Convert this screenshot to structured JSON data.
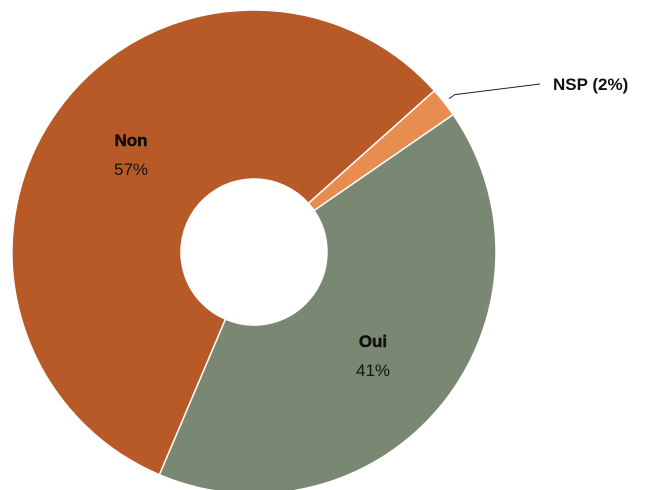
{
  "chart_data": {
    "type": "pie",
    "donut": true,
    "title": "",
    "start_angle_deg": 0,
    "slices": [
      {
        "name": "Non",
        "value": 57,
        "label_pct": "57%",
        "color": "#b85a28",
        "label_position": "inside"
      },
      {
        "name": "NSP",
        "value": 2,
        "label_pct": "2%",
        "color": "#e68d4f",
        "label_position": "outside",
        "outside_text": "NSP (2%)"
      },
      {
        "name": "Oui",
        "value": 41,
        "label_pct": "41%",
        "color": "#7a8772",
        "label_position": "inside"
      }
    ],
    "legend": "none"
  }
}
